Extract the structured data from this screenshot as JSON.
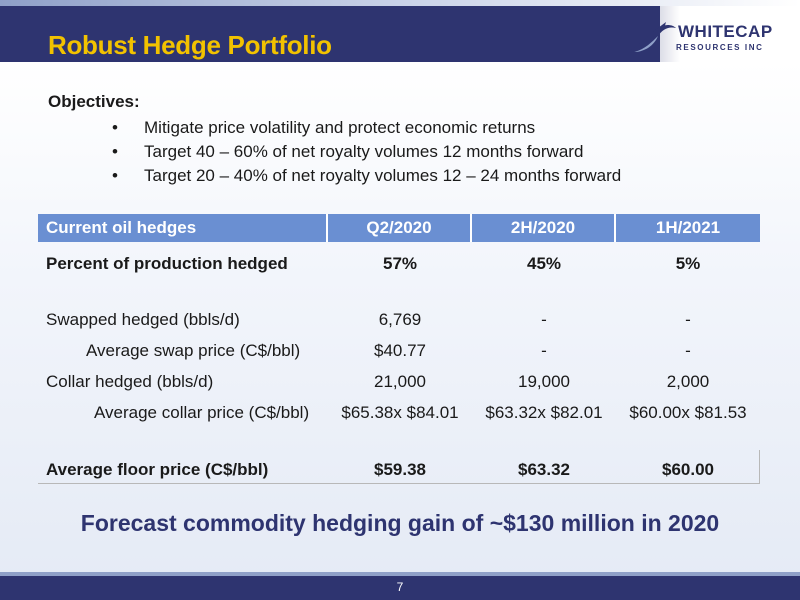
{
  "slide": {
    "title": "Robust Hedge Portfolio",
    "logo": {
      "name": "WHITECAP",
      "sub": "RESOURCES INC"
    },
    "page_number": "7"
  },
  "objectives": {
    "heading": "Objectives:",
    "items": [
      "Mitigate price volatility and protect economic returns",
      "Target 40 – 60% of net royalty volumes 12 months forward",
      "Target 20 – 40% of net royalty volumes 12 – 24 months forward"
    ]
  },
  "hedge_table": {
    "headers": [
      "Current oil hedges",
      "Q2/2020",
      "2H/2020",
      "1H/2021"
    ],
    "rows": [
      {
        "label": "Percent of production hedged",
        "values": [
          "57%",
          "45%",
          "5%"
        ]
      },
      {
        "label": "Swapped hedged (bbls/d)",
        "values": [
          "6,769",
          "-",
          "-"
        ]
      },
      {
        "label": "Average swap price (C$/bbl)",
        "values": [
          "$40.77",
          "-",
          "-"
        ]
      },
      {
        "label": "Collar hedged (bbls/d)",
        "values": [
          "21,000",
          "19,000",
          "2,000"
        ]
      },
      {
        "label": "Average collar price (C$/bbl)",
        "values": [
          "$65.38x $84.01",
          "$63.32x $82.01",
          "$60.00x $81.53"
        ]
      },
      {
        "label": "Average floor price (C$/bbl)",
        "values": [
          "$59.38",
          "$63.32",
          "$60.00"
        ]
      }
    ]
  },
  "forecast": "Forecast commodity hedging gain of ~$130 million in 2020",
  "colors": {
    "navy": "#2e3470",
    "gold": "#f2c200",
    "table_header": "#6a8fd2"
  }
}
